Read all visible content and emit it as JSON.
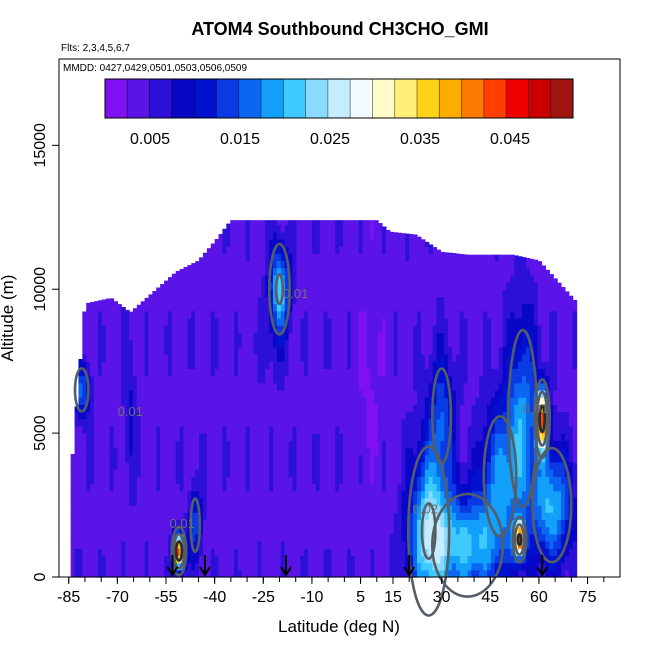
{
  "chart_data": {
    "type": "heatmap",
    "title": "ATOM4 Southbound CH3CHO_GMI",
    "subtitle_flights": "Flts: 2,3,4,5,6,7",
    "subtitle_dates": "MMDD: 0427,0429,0501,0503,0506,0509",
    "xlabel": "Latitude (deg N)",
    "ylabel": "Altitude (m)",
    "xlim": [
      -88,
      85
    ],
    "ylim": [
      0,
      18000
    ],
    "x_ticks": [
      -85,
      -70,
      -55,
      -40,
      -25,
      -10,
      5,
      15,
      30,
      45,
      60,
      75
    ],
    "y_ticks": [
      0,
      5000,
      10000,
      15000
    ],
    "colorbar": {
      "range": [
        0,
        0.052
      ],
      "tick_values": [
        0.005,
        0.015,
        0.025,
        0.035,
        0.045
      ],
      "colors": [
        "#7f10f2",
        "#5a14e8",
        "#2c10d8",
        "#0a06c8",
        "#0012d0",
        "#0a3ae2",
        "#0b66f2",
        "#12a0fb",
        "#3fcaff",
        "#8adaff",
        "#c6ecff",
        "#f1faff",
        "#fffbc8",
        "#fff078",
        "#ffd21a",
        "#ffab00",
        "#ff7a00",
        "#ff3e00",
        "#f00000",
        "#c80000",
        "#a01410"
      ],
      "placement": "top"
    },
    "flight_markers_lat": [
      -53,
      -43,
      -18,
      20,
      61
    ],
    "contour_labels": [
      {
        "text": "0.01",
        "lat": -15,
        "alt": 9700
      },
      {
        "text": "0.01",
        "lat": -66,
        "alt": 5600
      },
      {
        "text": "0.01",
        "lat": 59,
        "alt": 5700
      },
      {
        "text": "0.02",
        "lat": 25,
        "alt": 2200
      },
      {
        "text": "0.01",
        "lat": -50,
        "alt": 1700
      }
    ],
    "field": {
      "background": 0.004,
      "profile_bounds": [
        {
          "lat": -84,
          "top": 4000
        },
        {
          "lat": -80,
          "top": 9500
        },
        {
          "lat": -72,
          "top": 9700
        },
        {
          "lat": -66,
          "top": 9200
        },
        {
          "lat": -58,
          "top": 10000
        },
        {
          "lat": -52,
          "top": 10600
        },
        {
          "lat": -45,
          "top": 11000
        },
        {
          "lat": -39,
          "top": 11800
        },
        {
          "lat": -35,
          "top": 12400
        },
        {
          "lat": 10,
          "top": 12400
        },
        {
          "lat": 14,
          "top": 12000
        },
        {
          "lat": 22,
          "top": 11900
        },
        {
          "lat": 30,
          "top": 11300
        },
        {
          "lat": 38,
          "top": 11200
        },
        {
          "lat": 52,
          "top": 11200
        },
        {
          "lat": 60,
          "top": 11000
        },
        {
          "lat": 68,
          "top": 10000
        },
        {
          "lat": 72,
          "top": 9500
        }
      ],
      "blobs": [
        {
          "lat": -20,
          "alt": 10000,
          "slat": 3,
          "salt": 1500,
          "v": 0.022
        },
        {
          "lat": -22,
          "alt": 7800,
          "slat": 4,
          "salt": 1300,
          "v": 0.006
        },
        {
          "lat": -81,
          "alt": 6500,
          "slat": 2.5,
          "salt": 900,
          "v": 0.016
        },
        {
          "lat": -66,
          "alt": 5800,
          "slat": 2,
          "salt": 2500,
          "v": 0.008
        },
        {
          "lat": -51,
          "alt": 900,
          "slat": 1.6,
          "salt": 600,
          "v": 0.046
        },
        {
          "lat": -46,
          "alt": 1800,
          "slat": 2,
          "salt": 1300,
          "v": 0.014
        },
        {
          "lat": 26,
          "alt": 1600,
          "slat": 6,
          "salt": 2800,
          "v": 0.022
        },
        {
          "lat": 38,
          "alt": 1100,
          "slat": 11,
          "salt": 1800,
          "v": 0.02
        },
        {
          "lat": 30,
          "alt": 5600,
          "slat": 4,
          "salt": 2300,
          "v": 0.014
        },
        {
          "lat": 54,
          "alt": 1300,
          "slat": 1.6,
          "salt": 600,
          "v": 0.038
        },
        {
          "lat": 55,
          "alt": 5500,
          "slat": 5,
          "salt": 3500,
          "v": 0.017
        },
        {
          "lat": 61,
          "alt": 5500,
          "slat": 1.7,
          "salt": 1000,
          "v": 0.042
        },
        {
          "lat": 64,
          "alt": 2500,
          "slat": 6,
          "salt": 2000,
          "v": 0.02
        },
        {
          "lat": 48,
          "alt": 3500,
          "slat": 6,
          "salt": 2500,
          "v": 0.016
        },
        {
          "lat": 8,
          "alt": 7000,
          "slat": 4,
          "salt": 3000,
          "v": 0.002
        }
      ]
    }
  }
}
